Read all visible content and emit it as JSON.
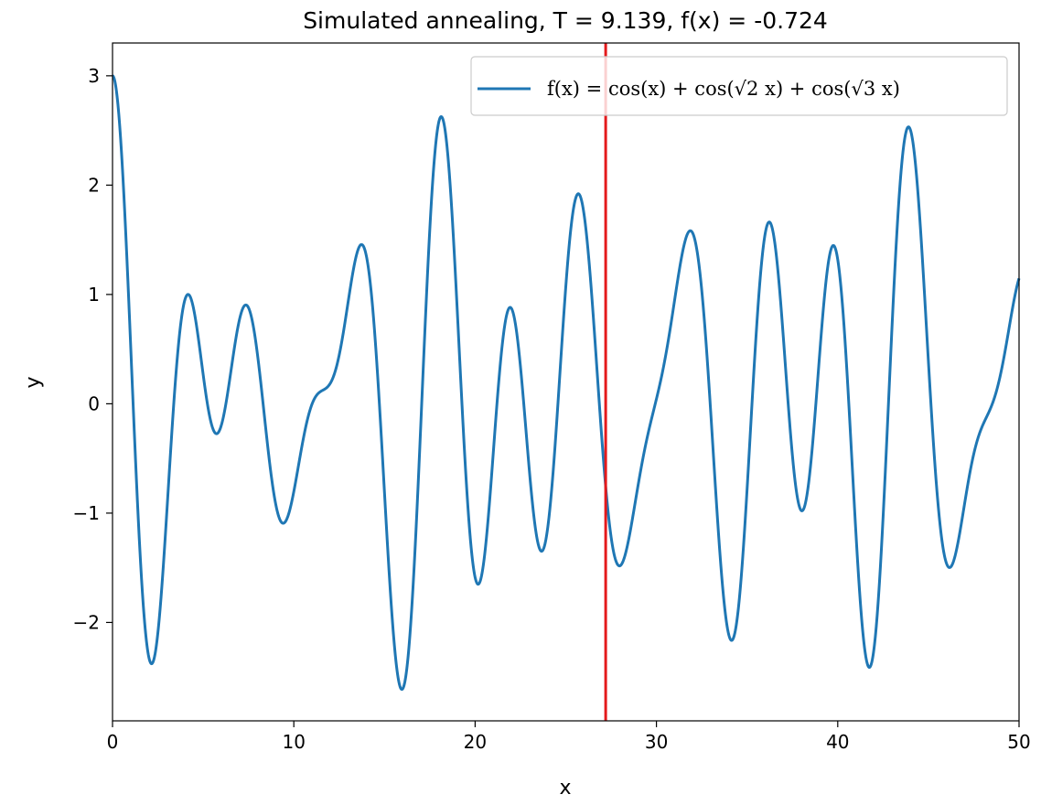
{
  "chart_data": {
    "type": "line",
    "title": "Simulated annealing, T = 9.139, f(x) = -0.724",
    "xlabel": "x",
    "ylabel": "y",
    "xlim": [
      0,
      50
    ],
    "ylim": [
      -2.9,
      3.3
    ],
    "xticks": [
      0,
      10,
      20,
      30,
      40,
      50
    ],
    "xtick_labels": [
      "0",
      "10",
      "20",
      "30",
      "40",
      "50"
    ],
    "yticks": [
      -2,
      -1,
      0,
      1,
      2,
      3
    ],
    "ytick_labels": [
      "−2",
      "−1",
      "0",
      "1",
      "2",
      "3"
    ],
    "grid": false,
    "legend": "top-right",
    "series": [
      {
        "name": "f(x) = cos(x) + cos(√2 x) + cos(√3 x)",
        "function": "cos(x) + cos(sqrt(2)*x) + cos(sqrt(3)*x)",
        "x_range": [
          0,
          50
        ],
        "color": "#1f77b4"
      }
    ],
    "marker_line": {
      "x": 27.2,
      "color": "#e41a1c"
    }
  }
}
